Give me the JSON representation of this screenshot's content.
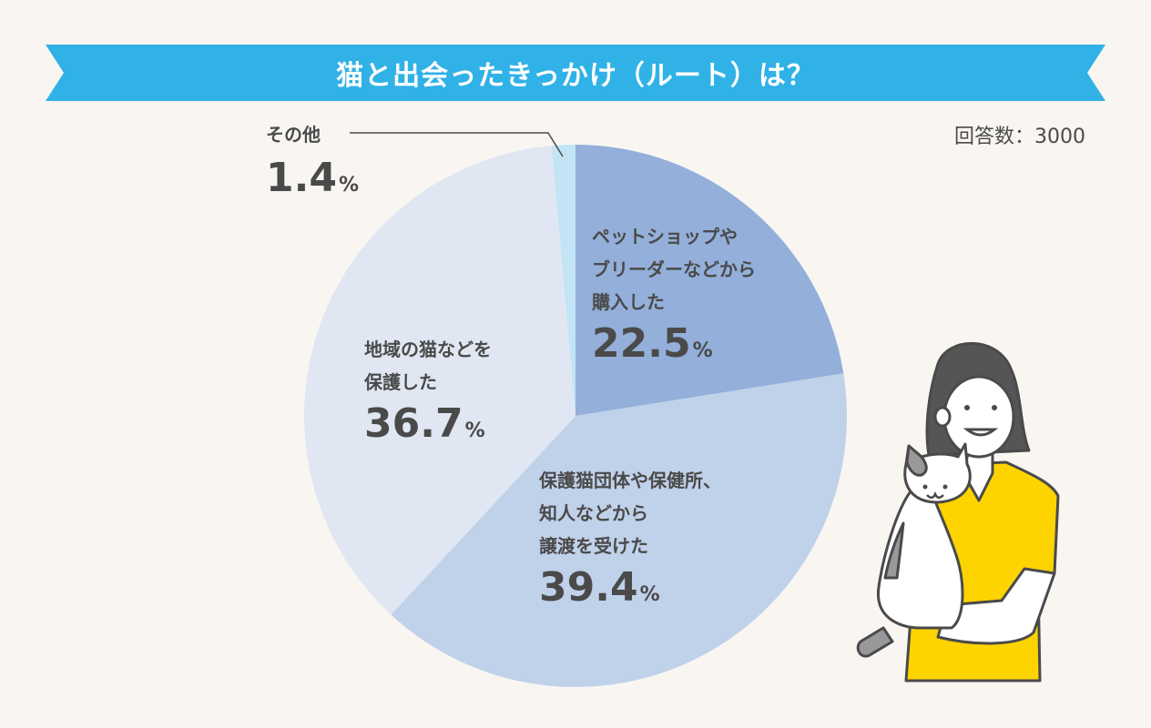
{
  "header": {
    "title": "猫と出会ったきっかけ（ルート）は？",
    "banner_color": "#30b2e7"
  },
  "respondents": "回答数：3000",
  "labels": {
    "other": {
      "text": "その他",
      "value": "1.4",
      "unit": "%"
    },
    "shop": {
      "lines": [
        "ペットショップや",
        "ブリーダーなどから",
        "購入した"
      ],
      "value": "22.5",
      "unit": "%"
    },
    "org": {
      "lines": [
        "保護猫団体や保健所、",
        "知人などから",
        "譲渡を受けた"
      ],
      "value": "39.4",
      "unit": "%"
    },
    "local": {
      "lines": [
        "地域の猫などを",
        "保護した"
      ],
      "value": "36.7",
      "unit": "%"
    }
  },
  "chart_data": {
    "type": "pie",
    "title": "猫と出会ったきっかけ（ルート）は？",
    "subtitle": "回答数：3000",
    "start_angle": "12 o'clock, clockwise",
    "categories": [
      "ペットショップやブリーダーなどから購入した",
      "保護猫団体や保健所、知人などから譲渡を受けた",
      "地域の猫などを保護した",
      "その他"
    ],
    "values": [
      22.5,
      39.4,
      36.7,
      1.4
    ],
    "unit": "%",
    "colors": [
      "#93afda",
      "#c0d1ea",
      "#e0e7f3",
      "#c2e4f4"
    ]
  }
}
